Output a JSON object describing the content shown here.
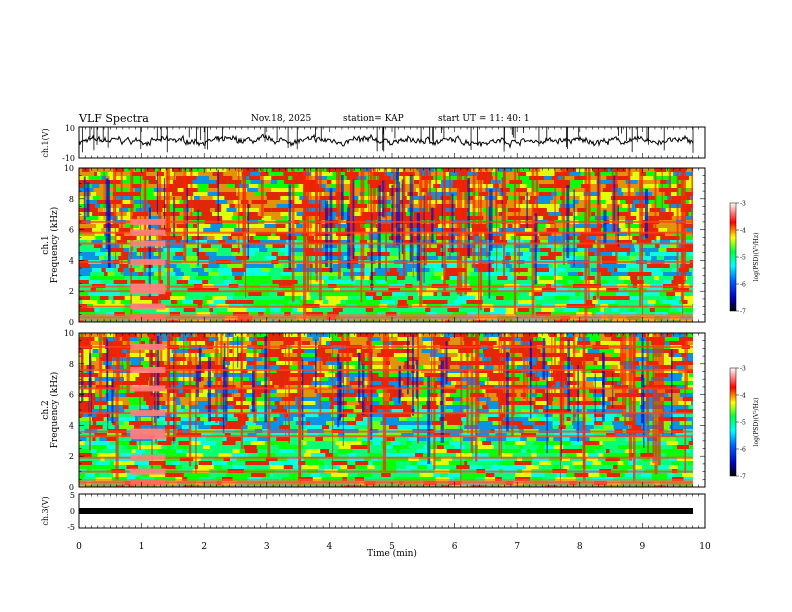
{
  "header": {
    "title": "VLF Spectra",
    "date": "Nov.18, 2025",
    "station": "station= KAP",
    "start_ut": "start  UT  =   11: 40: 1"
  },
  "colors": {
    "spectrum": [
      "#000080",
      "#0000ff",
      "#0080ff",
      "#00ffff",
      "#00ff80",
      "#00ff00",
      "#80ff00",
      "#ffff00",
      "#ff8000",
      "#ff0000",
      "#ff8080",
      "#ffffff"
    ],
    "trace": "#000000",
    "background": "#ffffff"
  },
  "chart_data": [
    {
      "type": "line",
      "name": "ch1-waveform",
      "ylabel": "ch.1(V)",
      "ylim": [
        -10,
        10
      ],
      "yticks": [
        "10",
        "-10"
      ],
      "xlim": [
        0,
        10
      ],
      "description": "noisy voltage trace around +1 V with spikes"
    },
    {
      "type": "heatmap",
      "name": "ch1-spectrogram",
      "ylabel": "ch.1\nFrequency (kHz)",
      "ylabel_lines": [
        "ch.1",
        "Frequency  (kHz)"
      ],
      "ylim": [
        0,
        10
      ],
      "yticks": [
        "0",
        "2",
        "4",
        "6",
        "8",
        "10"
      ],
      "xlim": [
        0,
        9.8
      ],
      "colorbar": {
        "label": "log(PSD)(V²/Hz)",
        "range": [
          -7,
          -3
        ],
        "ticks": [
          "-3",
          "-4",
          "-5",
          "-6",
          "-7"
        ]
      },
      "bands_khz": [
        0.3,
        1.0,
        2.0,
        2.3,
        3.9,
        5.1,
        5.8,
        6.5
      ]
    },
    {
      "type": "heatmap",
      "name": "ch2-spectrogram",
      "ylabel": "ch.2\nFrequency (kHz)",
      "ylabel_lines": [
        "ch.2",
        "Frequency  (kHz)"
      ],
      "ylim": [
        0,
        10
      ],
      "yticks": [
        "0",
        "2",
        "4",
        "6",
        "8",
        "10"
      ],
      "xlim": [
        0,
        9.8
      ],
      "colorbar": {
        "label": "log(PSD)(V²/Hz)",
        "range": [
          -7,
          -3
        ],
        "ticks": [
          "-3",
          "-4",
          "-5",
          "-6",
          "-7"
        ]
      },
      "bands_khz": [
        0.3,
        1.0,
        1.9,
        3.3,
        3.6,
        4.8,
        6.4,
        7.6,
        9.1
      ]
    },
    {
      "type": "line",
      "name": "ch3-waveform",
      "ylabel": "ch.3(V)",
      "ylim": [
        -5,
        5
      ],
      "yticks": [
        "5",
        "0",
        "-5"
      ],
      "xlim": [
        0,
        9.8
      ],
      "level": 0,
      "xlabel": "Time  (min)",
      "xticks": [
        "0",
        "1",
        "2",
        "3",
        "4",
        "5",
        "6",
        "7",
        "8",
        "9",
        "10"
      ]
    }
  ]
}
